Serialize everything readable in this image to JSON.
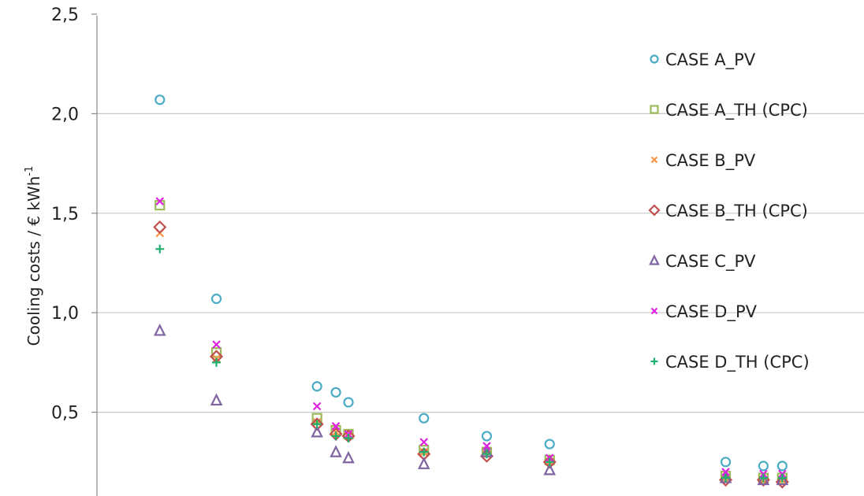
{
  "chart_data": {
    "type": "scatter",
    "ylabel": "Cooling costs / € kWh",
    "ylabel_superscript": "-1",
    "ylim": [
      0.0,
      2.5
    ],
    "yticks": [
      "2,5",
      "2,0",
      "1,5",
      "1,0",
      "0,5"
    ],
    "ytick_values": [
      2.5,
      2.0,
      1.5,
      1.0,
      0.5
    ],
    "grid": "horizontal",
    "legend_position": "right",
    "x_positions": [
      1,
      2,
      3,
      4,
      5,
      6,
      7,
      8,
      9,
      10,
      11,
      12
    ],
    "xlim": [
      0,
      13
    ],
    "series": [
      {
        "name": "CASE A_PV",
        "marker": "circle",
        "color": "#4bacc6",
        "values": [
          2.07,
          1.07,
          0.63,
          0.6,
          0.55,
          0.47,
          0.38,
          0.34,
          0.25,
          0.23,
          0.23
        ]
      },
      {
        "name": "CASE A_TH (CPC)",
        "marker": "square",
        "color": "#9bbb59",
        "values": [
          1.54,
          0.8,
          0.47,
          0.41,
          0.39,
          0.31,
          0.3,
          0.26,
          0.18,
          0.17,
          0.17
        ]
      },
      {
        "name": "CASE B_PV",
        "marker": "x",
        "color": "#f79646",
        "values": [
          1.4,
          0.77,
          0.45,
          0.4,
          0.38,
          0.3,
          0.29,
          0.25,
          0.17,
          0.16,
          0.16
        ]
      },
      {
        "name": "CASE B_TH (CPC)",
        "marker": "diamond",
        "color": "#c0504d",
        "values": [
          1.43,
          0.78,
          0.44,
          0.39,
          0.38,
          0.29,
          0.28,
          0.25,
          0.16,
          0.16,
          0.15
        ]
      },
      {
        "name": "CASE C_PV",
        "marker": "triangle",
        "color": "#8064a2",
        "values": [
          0.91,
          0.56,
          0.4,
          0.3,
          0.27,
          0.24,
          0.3,
          0.21,
          0.17,
          0.16,
          0.16
        ]
      },
      {
        "name": "CASE D_PV",
        "marker": "x",
        "color": "#e020e0",
        "values": [
          1.56,
          0.84,
          0.53,
          0.43,
          0.39,
          0.35,
          0.33,
          0.27,
          0.2,
          0.19,
          0.19
        ]
      },
      {
        "name": "CASE D_TH (CPC)",
        "marker": "plus",
        "color": "#20b070",
        "values": [
          1.32,
          0.75,
          0.44,
          0.38,
          0.37,
          0.3,
          0.29,
          0.25,
          0.17,
          0.17,
          0.17
        ]
      }
    ],
    "x": [
      1.0,
      1.9,
      3.5,
      3.8,
      4.0,
      5.2,
      6.2,
      7.2,
      10.0,
      10.6,
      10.9
    ]
  }
}
